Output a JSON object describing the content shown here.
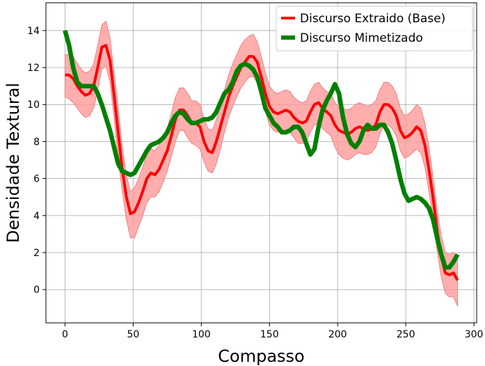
{
  "chart_data": {
    "type": "line",
    "title": "",
    "xlabel": "Compasso",
    "ylabel": "Densidade Textural",
    "xlim": [
      -14,
      302
    ],
    "ylim": [
      -1.8,
      15.5
    ],
    "xticks": [
      0,
      50,
      100,
      150,
      200,
      250,
      300
    ],
    "yticks": [
      0,
      2,
      4,
      6,
      8,
      10,
      12,
      14
    ],
    "grid": true,
    "legend": "top-right",
    "series": [
      {
        "name": "Discurso Extraido (Base)",
        "color": "#ff0000",
        "band_color": "#ff9a9a",
        "x": [
          0,
          3,
          6,
          9,
          12,
          15,
          18,
          21,
          24,
          27,
          30,
          33,
          36,
          39,
          42,
          45,
          48,
          51,
          54,
          57,
          60,
          63,
          66,
          69,
          72,
          75,
          78,
          81,
          84,
          87,
          90,
          93,
          96,
          99,
          102,
          105,
          108,
          111,
          114,
          117,
          120,
          123,
          126,
          129,
          132,
          135,
          138,
          141,
          144,
          147,
          150,
          153,
          156,
          159,
          162,
          165,
          168,
          171,
          174,
          177,
          180,
          183,
          186,
          189,
          192,
          195,
          198,
          201,
          204,
          207,
          210,
          213,
          216,
          219,
          222,
          225,
          228,
          231,
          234,
          237,
          240,
          243,
          246,
          249,
          252,
          255,
          258,
          261,
          264,
          267,
          270,
          273,
          276,
          279,
          282,
          285,
          288
        ],
        "y": [
          11.6,
          11.6,
          11.4,
          11.0,
          10.7,
          10.5,
          10.6,
          11.0,
          12.0,
          13.1,
          13.2,
          12.4,
          10.5,
          8.5,
          6.5,
          5.0,
          4.1,
          4.2,
          4.7,
          5.3,
          6.0,
          6.3,
          6.2,
          6.5,
          7.0,
          7.5,
          8.3,
          9.2,
          9.7,
          9.7,
          9.4,
          9.0,
          9.0,
          8.8,
          8.0,
          7.5,
          7.4,
          8.0,
          8.8,
          9.6,
          10.4,
          11.0,
          11.5,
          12.0,
          12.3,
          12.6,
          12.6,
          12.3,
          11.5,
          10.6,
          9.9,
          9.6,
          9.5,
          9.6,
          9.7,
          9.6,
          9.3,
          9.1,
          9.0,
          9.1,
          9.6,
          10.0,
          10.1,
          9.8,
          9.6,
          9.4,
          8.9,
          8.6,
          8.5,
          8.4,
          8.5,
          8.7,
          8.8,
          8.7,
          8.6,
          8.7,
          8.9,
          9.6,
          10.0,
          10.0,
          9.8,
          9.4,
          8.6,
          8.2,
          8.3,
          8.5,
          8.8,
          8.6,
          7.8,
          6.5,
          5.0,
          3.2,
          1.8,
          0.9,
          0.8,
          0.9,
          0.5
        ],
        "lower": [
          10.4,
          10.3,
          10.1,
          9.8,
          9.5,
          9.3,
          9.4,
          9.8,
          10.8,
          11.9,
          12.1,
          11.2,
          9.3,
          7.1,
          5.3,
          3.8,
          2.8,
          2.8,
          3.4,
          4.0,
          4.7,
          5.0,
          5.0,
          5.3,
          5.8,
          6.4,
          7.2,
          8.0,
          8.6,
          8.6,
          8.2,
          7.9,
          7.8,
          7.6,
          6.9,
          6.4,
          6.3,
          6.8,
          7.6,
          8.5,
          9.3,
          9.9,
          10.4,
          10.9,
          11.2,
          11.5,
          11.5,
          11.2,
          10.4,
          9.6,
          8.9,
          8.6,
          8.5,
          8.6,
          8.6,
          8.5,
          8.2,
          7.9,
          7.9,
          8.0,
          8.5,
          8.9,
          9.0,
          8.7,
          8.5,
          8.3,
          7.7,
          7.3,
          7.1,
          7.0,
          7.1,
          7.3,
          7.4,
          7.3,
          7.3,
          7.4,
          7.7,
          8.4,
          8.9,
          8.9,
          8.7,
          8.3,
          7.5,
          7.1,
          7.2,
          7.4,
          7.6,
          7.4,
          6.6,
          5.3,
          3.9,
          2.1,
          0.7,
          -0.2,
          -0.4,
          -0.4,
          -0.9
        ],
        "upper": [
          12.7,
          12.7,
          12.6,
          12.2,
          11.9,
          11.7,
          11.8,
          12.2,
          13.2,
          14.3,
          14.5,
          13.6,
          11.7,
          9.8,
          7.7,
          6.2,
          5.3,
          5.5,
          6.0,
          6.6,
          7.3,
          7.6,
          7.5,
          7.8,
          8.3,
          8.7,
          9.5,
          10.4,
          10.9,
          10.9,
          10.6,
          10.2,
          10.2,
          10.0,
          9.2,
          8.7,
          8.6,
          9.2,
          10.0,
          10.8,
          11.6,
          12.2,
          12.7,
          13.2,
          13.5,
          13.7,
          13.8,
          13.4,
          12.6,
          11.7,
          11.0,
          10.7,
          10.6,
          10.7,
          10.8,
          10.7,
          10.4,
          10.2,
          10.1,
          10.2,
          10.7,
          11.1,
          11.2,
          10.9,
          10.7,
          10.6,
          10.1,
          9.8,
          9.8,
          9.7,
          9.8,
          10.0,
          10.1,
          10.0,
          9.9,
          10.0,
          10.2,
          10.8,
          11.2,
          11.2,
          11.0,
          10.6,
          9.8,
          9.4,
          9.5,
          9.7,
          10.0,
          9.8,
          9.0,
          7.7,
          6.1,
          4.3,
          2.9,
          2.0,
          1.9,
          2.0,
          1.6
        ]
      },
      {
        "name": "Discurso Mimetizado",
        "color": "#008000",
        "x": [
          0,
          3,
          6,
          9,
          12,
          15,
          18,
          21,
          24,
          27,
          30,
          33,
          36,
          39,
          42,
          45,
          48,
          51,
          54,
          57,
          60,
          63,
          66,
          69,
          72,
          75,
          78,
          81,
          84,
          87,
          90,
          93,
          96,
          99,
          102,
          105,
          108,
          111,
          114,
          117,
          120,
          123,
          126,
          129,
          132,
          135,
          138,
          141,
          144,
          147,
          150,
          153,
          156,
          159,
          162,
          165,
          168,
          171,
          174,
          177,
          180,
          183,
          186,
          189,
          192,
          195,
          198,
          201,
          204,
          207,
          210,
          213,
          216,
          219,
          222,
          225,
          228,
          231,
          234,
          237,
          240,
          243,
          246,
          249,
          252,
          255,
          258,
          261,
          264,
          267,
          270,
          273,
          276,
          279,
          282,
          285,
          288
        ],
        "y": [
          14.0,
          13.2,
          12.0,
          11.2,
          11.0,
          11.0,
          11.0,
          11.0,
          10.6,
          10.0,
          9.3,
          8.6,
          7.7,
          6.8,
          6.4,
          6.3,
          6.2,
          6.3,
          6.7,
          7.1,
          7.5,
          7.8,
          7.9,
          8.0,
          8.2,
          8.5,
          9.0,
          9.4,
          9.6,
          9.5,
          9.2,
          9.0,
          9.0,
          9.1,
          9.2,
          9.2,
          9.3,
          9.6,
          10.1,
          10.6,
          10.8,
          11.2,
          11.8,
          12.1,
          12.2,
          12.1,
          11.9,
          11.5,
          10.7,
          9.8,
          9.4,
          9.0,
          8.8,
          8.5,
          8.5,
          8.6,
          8.8,
          8.8,
          8.5,
          7.9,
          7.3,
          7.6,
          8.8,
          9.7,
          10.2,
          10.6,
          11.1,
          10.6,
          9.3,
          8.4,
          7.9,
          7.7,
          8.0,
          8.6,
          8.9,
          8.7,
          8.7,
          8.9,
          8.9,
          8.5,
          7.9,
          7.0,
          6.0,
          5.2,
          4.8,
          4.9,
          5.0,
          4.9,
          4.7,
          4.4,
          3.8,
          2.8,
          1.9,
          1.2,
          1.2,
          1.5,
          1.9
        ]
      }
    ]
  }
}
